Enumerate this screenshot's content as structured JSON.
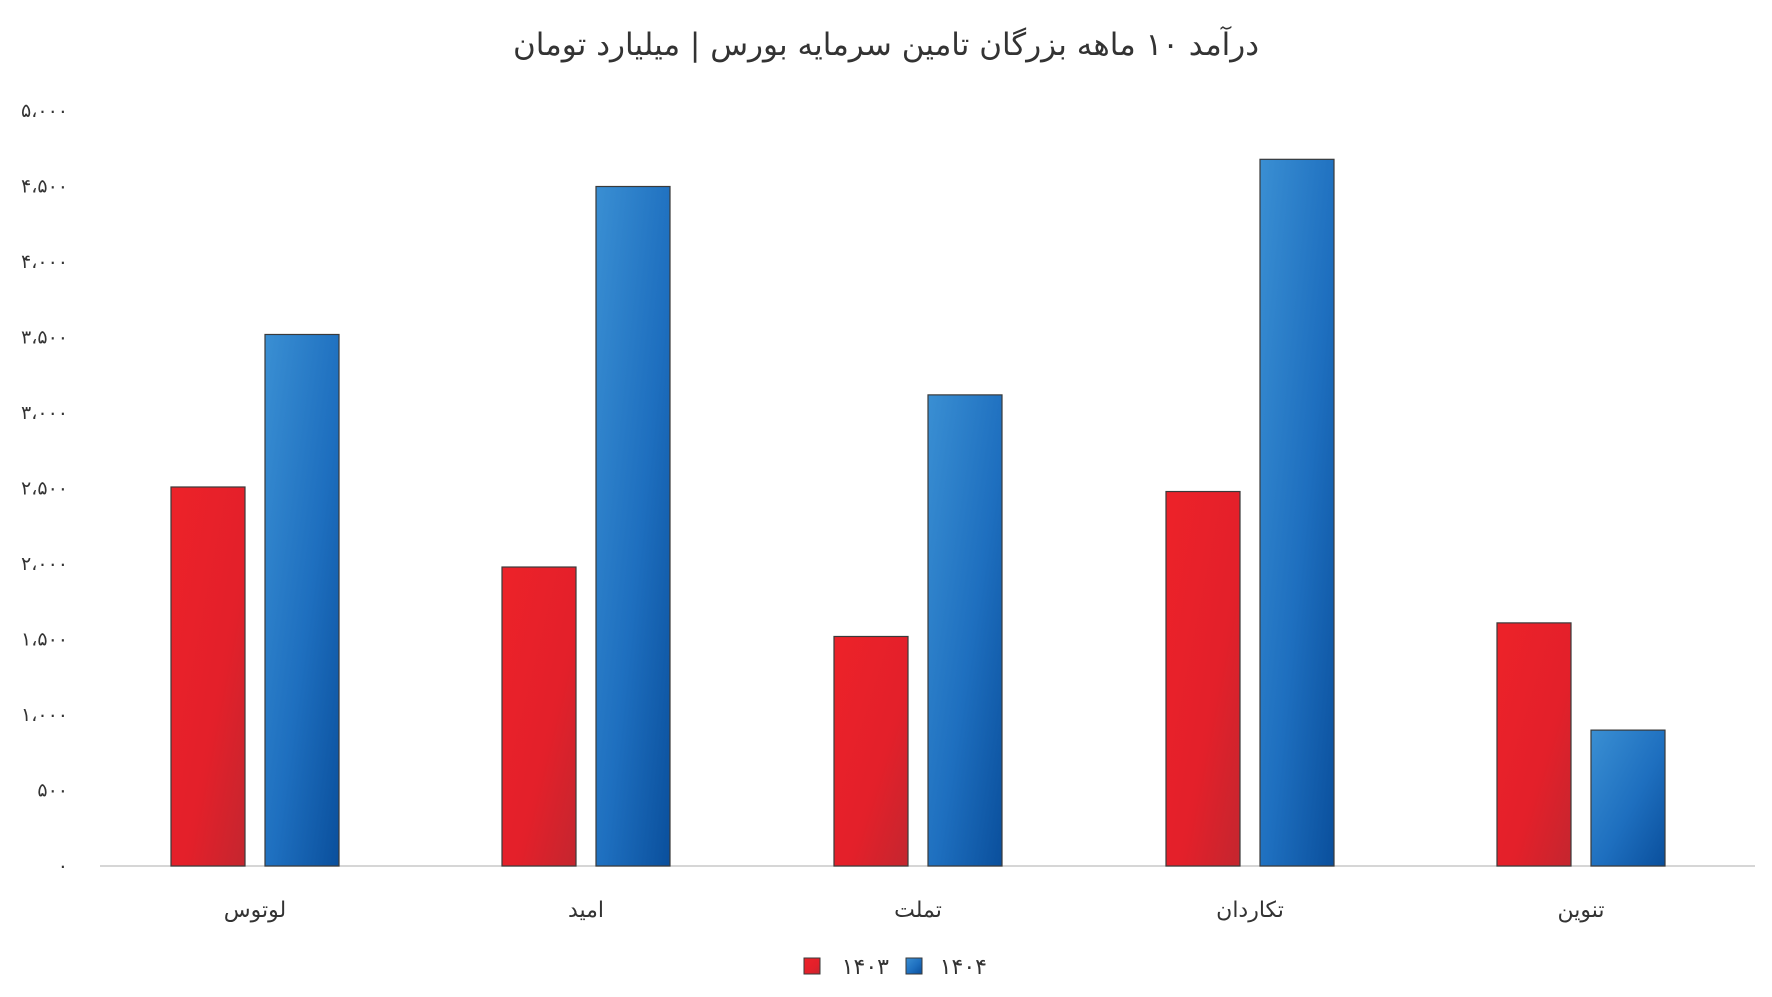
{
  "chart_data": {
    "type": "bar",
    "title": "درآمد ۱۰ ماهه بزرگان تامین سرمایه بورس | میلیارد تومان",
    "categories": [
      "لوتوس",
      "امید",
      "تملت",
      "تکاردان",
      "تنوین"
    ],
    "series": [
      {
        "name": "۱۴۰۳",
        "values": [
          2510,
          1980,
          1520,
          2480,
          1610
        ],
        "color": "#e3202a"
      },
      {
        "name": "۱۴۰۴",
        "values": [
          3520,
          4500,
          3120,
          4680,
          900
        ],
        "color": "#1e6fbf"
      }
    ],
    "ylim": [
      0,
      5000
    ],
    "yticks": [
      0,
      500,
      1000,
      1500,
      2000,
      2500,
      3000,
      3500,
      4000,
      4500,
      5000
    ],
    "ytick_labels": [
      "۰",
      "۵۰۰",
      "۱،۰۰۰",
      "۱،۵۰۰",
      "۲،۰۰۰",
      "۲،۵۰۰",
      "۳،۰۰۰",
      "۳،۵۰۰",
      "۴،۰۰۰",
      "۴،۵۰۰",
      "۵،۰۰۰"
    ],
    "xlabel": "",
    "ylabel": "",
    "grid": false,
    "legend_position": "bottom"
  }
}
